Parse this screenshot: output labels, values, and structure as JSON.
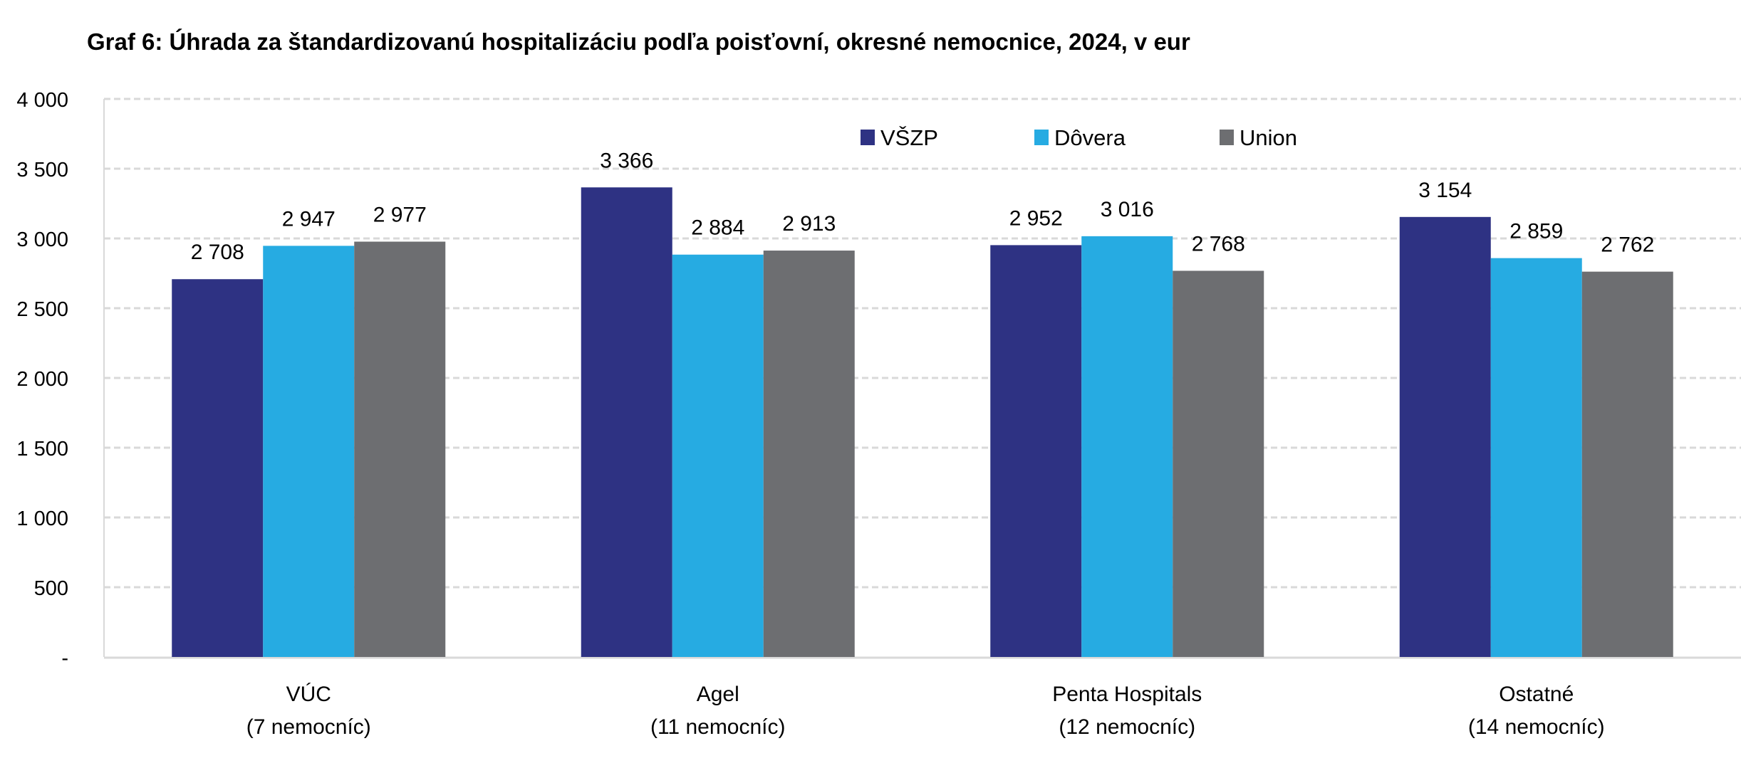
{
  "chart_data": {
    "type": "bar",
    "title": "Graf 6: Úhrada za štandardizovanú hospitalizáciu podľa poisťovní, okresné nemocnice, 2024, v eur",
    "xlabel": "",
    "ylabel": "",
    "categories": [
      [
        "VÚC",
        "(7 nemocníc)"
      ],
      [
        "Agel",
        "(11 nemocníc)"
      ],
      [
        "Penta Hospitals",
        "(12 nemocníc)"
      ],
      [
        "Ostatné",
        "(14 nemocníc)"
      ]
    ],
    "series": [
      {
        "name": "VŠZP",
        "color": "#2e3283",
        "values": [
          2708,
          3366,
          2952,
          3154
        ],
        "labels": [
          "2 708",
          "3 366",
          "2 952",
          "3 154"
        ]
      },
      {
        "name": "Dôvera",
        "color": "#26abe2",
        "values": [
          2947,
          2884,
          3016,
          2859
        ],
        "labels": [
          "2 947",
          "2 884",
          "3 016",
          "2 859"
        ]
      },
      {
        "name": "Union",
        "color": "#6d6e71",
        "values": [
          2977,
          2913,
          2768,
          2762
        ],
        "labels": [
          "2 977",
          "2 913",
          "2 768",
          "2 762"
        ]
      }
    ],
    "ylim": [
      0,
      4000
    ],
    "yticks": [
      0,
      500,
      1000,
      1500,
      2000,
      2500,
      3000,
      3500,
      4000
    ],
    "ytick_labels": [
      "-",
      "500",
      "1 000",
      "1 500",
      "2 000",
      "2 500",
      "3 000",
      "3 500",
      "4 000"
    ],
    "grid": "horizontal dashed",
    "legend": "top-center"
  }
}
